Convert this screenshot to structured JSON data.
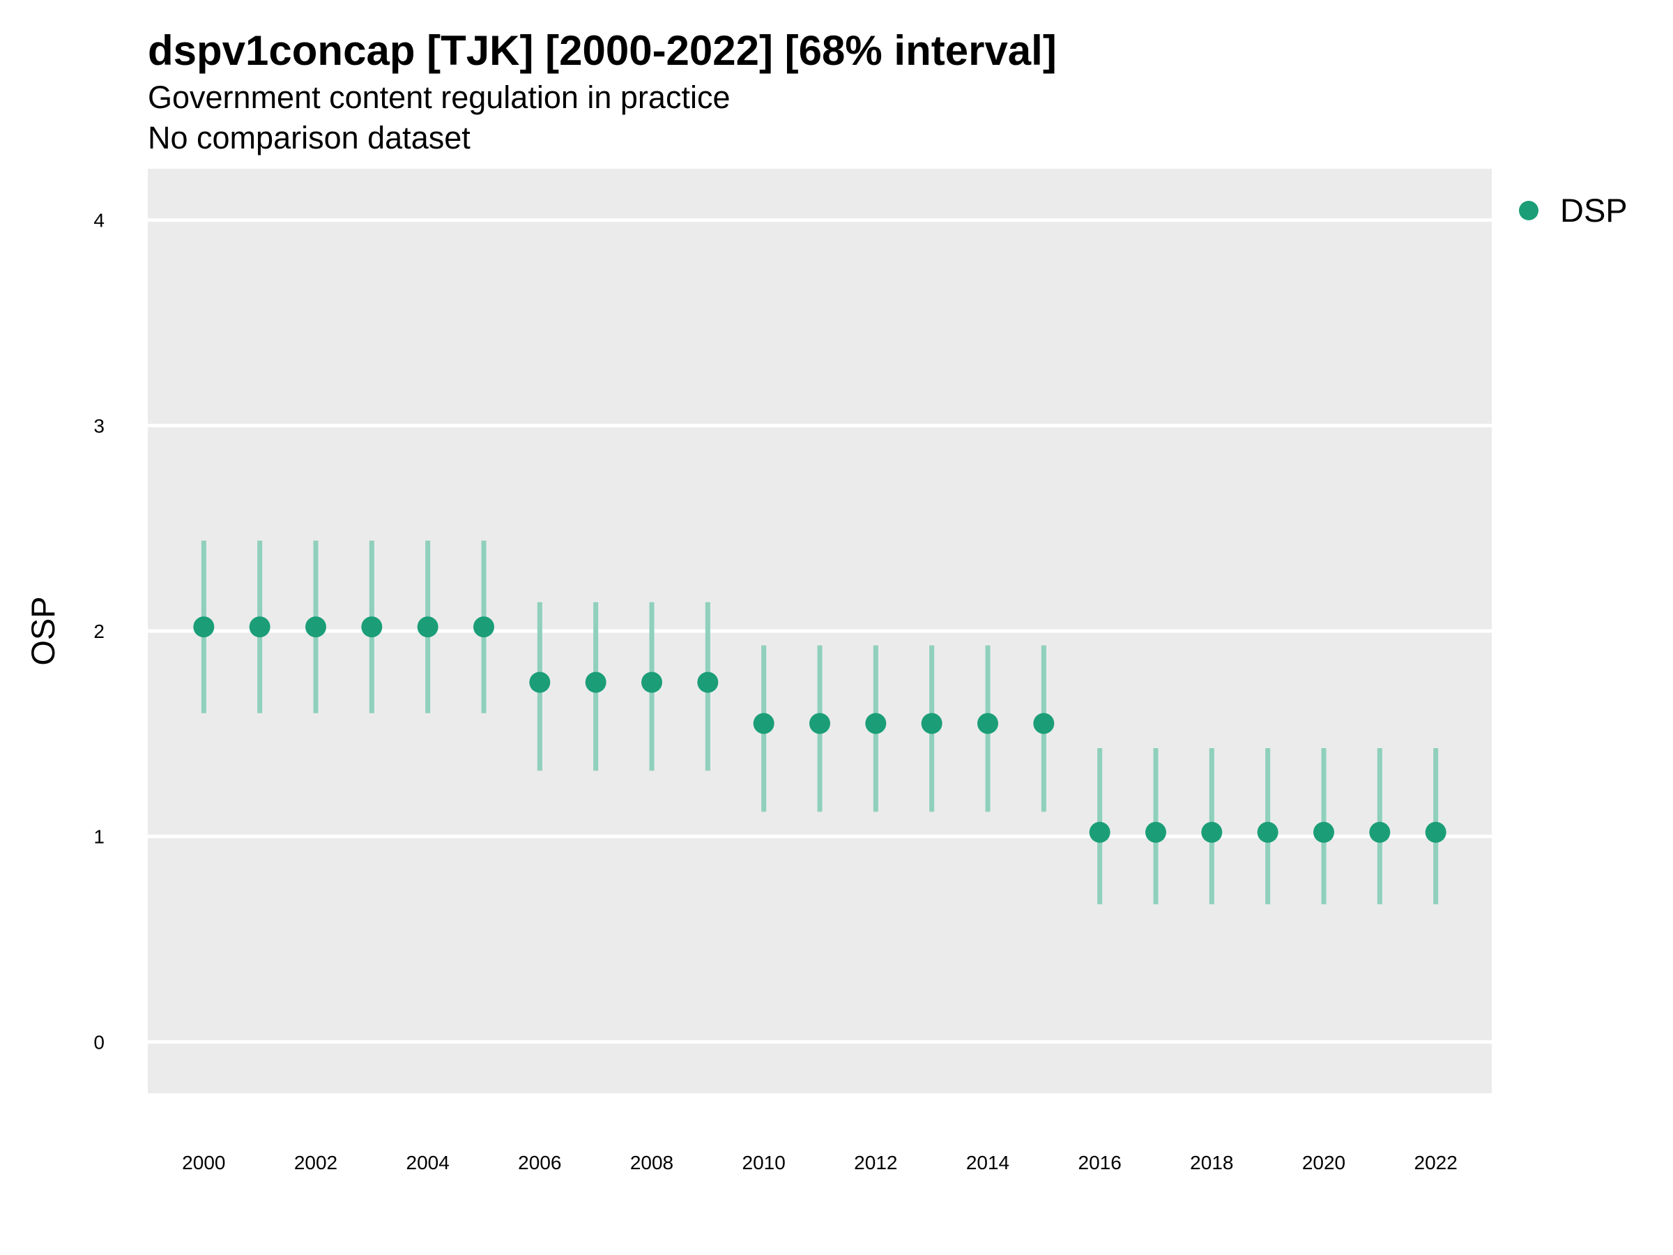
{
  "chart_data": {
    "type": "scatter",
    "title": "dspv1concap [TJK] [2000-2022] [68% interval]",
    "subtitle": "Government content regulation in practice",
    "subtitle2": "No comparison dataset",
    "xlabel": "",
    "ylabel": "OSP",
    "ylim": [
      -0.25,
      4.25
    ],
    "yticks": [
      0,
      1,
      2,
      3,
      4
    ],
    "xlim": [
      1999.0,
      2023.0
    ],
    "xticks": [
      2000,
      2002,
      2004,
      2006,
      2008,
      2010,
      2012,
      2014,
      2016,
      2018,
      2020,
      2022
    ],
    "grid": true,
    "legend_position": "right",
    "series": [
      {
        "name": "DSP",
        "color": "#1b9e77",
        "x": [
          2000,
          2001,
          2002,
          2003,
          2004,
          2005,
          2006,
          2007,
          2008,
          2009,
          2010,
          2011,
          2012,
          2013,
          2014,
          2015,
          2016,
          2017,
          2018,
          2019,
          2020,
          2021,
          2022
        ],
        "y": [
          2.02,
          2.02,
          2.02,
          2.02,
          2.02,
          2.02,
          1.75,
          1.75,
          1.75,
          1.75,
          1.55,
          1.55,
          1.55,
          1.55,
          1.55,
          1.55,
          1.02,
          1.02,
          1.02,
          1.02,
          1.02,
          1.02,
          1.02
        ],
        "lower": [
          1.6,
          1.6,
          1.6,
          1.6,
          1.6,
          1.6,
          1.32,
          1.32,
          1.32,
          1.32,
          1.12,
          1.12,
          1.12,
          1.12,
          1.12,
          1.12,
          0.67,
          0.67,
          0.67,
          0.67,
          0.67,
          0.67,
          0.67
        ],
        "upper": [
          2.44,
          2.44,
          2.44,
          2.44,
          2.44,
          2.44,
          2.14,
          2.14,
          2.14,
          2.14,
          1.93,
          1.93,
          1.93,
          1.93,
          1.93,
          1.93,
          1.43,
          1.43,
          1.43,
          1.43,
          1.43,
          1.43,
          1.43
        ]
      }
    ]
  },
  "colors": {
    "panel_background": "#ebebeb",
    "gridline": "#ffffff",
    "interval": "#8fd0bc"
  }
}
